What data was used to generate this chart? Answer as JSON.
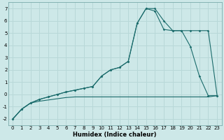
{
  "title": "",
  "xlabel": "Humidex (Indice chaleur)",
  "ylabel": "",
  "bg_color": "#cde8e8",
  "grid_color": "#b8d8d8",
  "line_color": "#1a6b6b",
  "xlim": [
    -0.5,
    23.5
  ],
  "ylim": [
    -2.5,
    7.5
  ],
  "yticks": [
    -2,
    -1,
    0,
    1,
    2,
    3,
    4,
    5,
    6,
    7
  ],
  "xticks": [
    0,
    1,
    2,
    3,
    4,
    5,
    6,
    7,
    8,
    9,
    10,
    11,
    12,
    13,
    14,
    15,
    16,
    17,
    18,
    19,
    20,
    21,
    22,
    23
  ],
  "series1_x": [
    0,
    1,
    2,
    3,
    4,
    5,
    6,
    7,
    8,
    9,
    10,
    11,
    12,
    13,
    14,
    15,
    16,
    17,
    18,
    19,
    20,
    21,
    22,
    23
  ],
  "series1_y": [
    -2.0,
    -1.2,
    -0.7,
    -0.55,
    -0.45,
    -0.35,
    -0.25,
    -0.2,
    -0.2,
    -0.2,
    -0.2,
    -0.2,
    -0.2,
    -0.2,
    -0.2,
    -0.2,
    -0.2,
    -0.2,
    -0.2,
    -0.2,
    -0.2,
    -0.2,
    -0.2,
    -0.1
  ],
  "series2_x": [
    0,
    1,
    2,
    3,
    4,
    5,
    6,
    7,
    8,
    9,
    10,
    11,
    12,
    13,
    14,
    15,
    16,
    17,
    18,
    19,
    20,
    21,
    22,
    23
  ],
  "series2_y": [
    -2.0,
    -1.2,
    -0.7,
    -0.4,
    -0.2,
    0.0,
    0.2,
    0.35,
    0.5,
    0.65,
    1.5,
    2.0,
    2.2,
    2.7,
    5.8,
    7.0,
    6.8,
    5.3,
    5.2,
    5.2,
    5.2,
    5.2,
    5.2,
    -0.1
  ],
  "series3_x": [
    0,
    1,
    2,
    3,
    4,
    5,
    6,
    7,
    8,
    9,
    10,
    11,
    12,
    13,
    14,
    15,
    16,
    17,
    18,
    19,
    20,
    21,
    22,
    23
  ],
  "series3_y": [
    -2.0,
    -1.2,
    -0.7,
    -0.4,
    -0.2,
    0.0,
    0.2,
    0.35,
    0.5,
    0.65,
    1.5,
    2.0,
    2.2,
    2.7,
    5.8,
    7.0,
    7.0,
    6.0,
    5.2,
    5.2,
    3.9,
    1.5,
    -0.1,
    -0.1
  ]
}
